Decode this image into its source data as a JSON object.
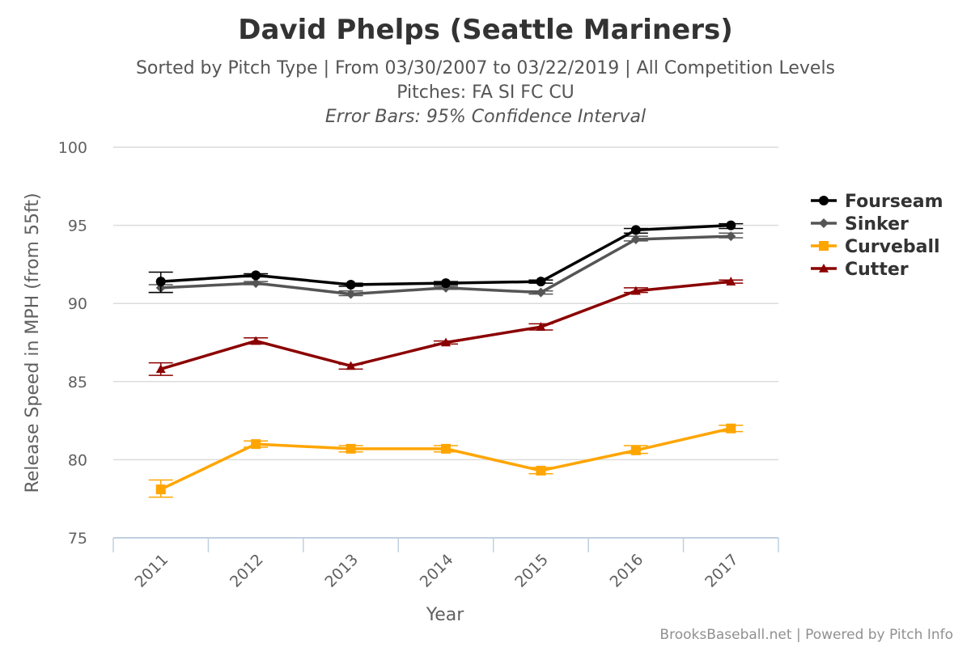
{
  "chart_data": {
    "type": "line",
    "title": "David Phelps (Seattle Mariners)",
    "subtitle_lines": [
      "Sorted by Pitch Type | From 03/30/2007 to 03/22/2019 | All Competition Levels",
      "Pitches: FA SI FC CU"
    ],
    "error_bar_note": "Error Bars: 95% Confidence Interval",
    "xlabel": "Year",
    "ylabel": "Release Speed in MPH (from 55ft)",
    "categories": [
      "2011",
      "2012",
      "2013",
      "2014",
      "2015",
      "2016",
      "2017"
    ],
    "ylim": [
      75,
      100
    ],
    "yticks": [
      "75",
      "80",
      "85",
      "90",
      "95",
      "100"
    ],
    "grid": true,
    "legend_position": "right",
    "series": [
      {
        "name": "Fourseam",
        "color": "#000000",
        "marker": "circle",
        "values": [
          91.4,
          91.8,
          91.2,
          91.3,
          91.4,
          94.7,
          95.0
        ],
        "err_low": [
          90.7,
          91.7,
          91.1,
          91.2,
          91.3,
          94.5,
          94.8
        ],
        "err_high": [
          92.0,
          91.9,
          91.3,
          91.4,
          91.5,
          94.8,
          95.1
        ]
      },
      {
        "name": "Sinker",
        "color": "#555555",
        "marker": "diamond",
        "values": [
          91.0,
          91.3,
          90.6,
          91.0,
          90.7,
          94.1,
          94.3
        ],
        "err_low": [
          90.7,
          91.2,
          90.5,
          90.9,
          90.6,
          94.0,
          94.2
        ],
        "err_high": [
          91.2,
          91.4,
          90.8,
          91.1,
          90.8,
          94.3,
          94.5
        ]
      },
      {
        "name": "Curveball",
        "color": "#ffa500",
        "marker": "square",
        "values": [
          78.1,
          81.0,
          80.7,
          80.7,
          79.3,
          80.6,
          82.0
        ],
        "err_low": [
          77.6,
          80.8,
          80.5,
          80.5,
          79.1,
          80.4,
          81.8
        ],
        "err_high": [
          78.7,
          81.2,
          80.9,
          80.9,
          79.5,
          80.9,
          82.2
        ]
      },
      {
        "name": "Cutter",
        "color": "#8b0000",
        "marker": "triangle",
        "values": [
          85.8,
          87.6,
          86.0,
          87.5,
          88.5,
          90.8,
          91.4
        ],
        "err_low": [
          85.4,
          87.4,
          85.8,
          87.4,
          88.3,
          90.7,
          91.3
        ],
        "err_high": [
          86.2,
          87.8,
          86.1,
          87.6,
          88.7,
          91.0,
          91.5
        ]
      }
    ],
    "credit": "BrooksBaseball.net | Powered by Pitch Info"
  }
}
